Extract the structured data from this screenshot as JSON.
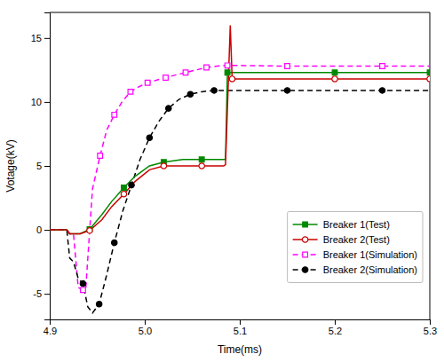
{
  "chart_data": {
    "type": "line",
    "xlabel": "Time(ms)",
    "ylabel": "Votage(kV)",
    "xlim": [
      4.9,
      5.3
    ],
    "ylim": [
      -7,
      17
    ],
    "xticks": [
      4.9,
      {
        "value": 5.0,
        "label": "5.0"
      },
      5.1,
      5.2,
      5.3
    ],
    "yticks": [
      -5,
      0,
      5,
      10,
      15
    ],
    "grid": false,
    "legend": "lower right",
    "series": [
      {
        "name": "Breaker 1(Test)",
        "color": "#008800",
        "line_style": "solid",
        "marker": "square",
        "x": [
          4.9,
          4.918,
          4.921,
          4.925,
          4.932,
          4.942,
          4.955,
          4.965,
          4.978,
          4.99,
          5.005,
          5.02,
          5.04,
          5.06,
          5.085,
          5.087,
          5.12,
          5.16,
          5.2,
          5.25,
          5.3
        ],
        "values": [
          0.0,
          0.0,
          -0.3,
          -0.3,
          -0.3,
          0.05,
          1.2,
          2.2,
          3.3,
          4.2,
          5.0,
          5.3,
          5.5,
          5.5,
          5.5,
          12.3,
          12.3,
          12.3,
          12.3,
          12.3,
          12.3
        ],
        "marker_x": [
          4.942,
          4.978,
          5.02,
          5.06,
          5.087,
          5.2,
          5.3
        ],
        "marker_values": [
          0.05,
          3.3,
          5.3,
          5.5,
          12.3,
          12.3,
          12.3
        ]
      },
      {
        "name": "Breaker 2(Test)",
        "color": "#cc0000",
        "line_style": "solid",
        "marker": "circle-open",
        "x": [
          4.9,
          4.918,
          4.921,
          4.925,
          4.932,
          4.942,
          4.955,
          4.965,
          4.978,
          4.99,
          5.005,
          5.02,
          5.04,
          5.06,
          5.083,
          5.085,
          5.09,
          5.092,
          5.12,
          5.16,
          5.2,
          5.25,
          5.3
        ],
        "values": [
          0.0,
          0.0,
          -0.3,
          -0.3,
          -0.3,
          -0.05,
          0.8,
          1.8,
          2.8,
          3.8,
          4.7,
          5.0,
          5.0,
          5.0,
          5.0,
          5.1,
          16.0,
          11.8,
          11.8,
          11.8,
          11.8,
          11.8,
          11.8
        ],
        "marker_x": [
          4.942,
          4.978,
          5.02,
          5.06,
          5.092,
          5.2,
          5.3
        ],
        "marker_values": [
          -0.05,
          2.8,
          5.0,
          5.0,
          11.8,
          11.8,
          11.8
        ]
      },
      {
        "name": "Breaker 1(Simulation)",
        "color": "#ff00ff",
        "line_style": "dashed",
        "marker": "square-open",
        "x": [
          4.9,
          4.918,
          4.921,
          4.925,
          4.93,
          4.935,
          4.938,
          4.945,
          4.953,
          4.96,
          4.968,
          4.976,
          4.985,
          4.994,
          5.003,
          5.012,
          5.022,
          5.032,
          5.043,
          5.054,
          5.065,
          5.076,
          5.087,
          5.1,
          5.15,
          5.2,
          5.25,
          5.3
        ],
        "values": [
          0.0,
          0.0,
          -0.3,
          -0.3,
          -4.5,
          -4.7,
          -4.5,
          3.2,
          5.8,
          7.8,
          9.0,
          10.0,
          10.8,
          11.2,
          11.5,
          11.7,
          11.9,
          12.1,
          12.3,
          12.5,
          12.7,
          12.8,
          12.85,
          12.85,
          12.8,
          12.8,
          12.8,
          12.8
        ],
        "marker_x": [
          4.935,
          4.953,
          4.968,
          4.985,
          5.003,
          5.022,
          5.043,
          5.065,
          5.087,
          5.15,
          5.25
        ],
        "marker_values": [
          -4.7,
          5.8,
          9.0,
          10.8,
          11.5,
          11.9,
          12.3,
          12.7,
          12.85,
          12.8,
          12.8
        ]
      },
      {
        "name": "Breaker 2(Simulation)",
        "color": "#000000",
        "line_style": "dashed",
        "marker": "circle",
        "x": [
          4.9,
          4.918,
          4.921,
          4.925,
          4.93,
          4.935,
          4.94,
          4.945,
          4.952,
          4.96,
          4.968,
          4.977,
          4.986,
          4.995,
          5.005,
          5.015,
          5.025,
          5.036,
          5.048,
          5.06,
          5.073,
          5.087,
          5.1,
          5.15,
          5.2,
          5.25,
          5.3
        ],
        "values": [
          0.0,
          0.0,
          -2.2,
          -2.5,
          -3.8,
          -4.2,
          -6.0,
          -6.5,
          -5.8,
          -3.5,
          -1.0,
          1.5,
          3.5,
          5.5,
          7.2,
          8.5,
          9.5,
          10.2,
          10.6,
          10.8,
          10.9,
          10.9,
          10.9,
          10.9,
          10.9,
          10.9,
          10.9
        ],
        "marker_x": [
          4.935,
          4.952,
          4.968,
          4.986,
          5.005,
          5.025,
          5.048,
          5.073,
          5.15,
          5.25
        ],
        "marker_values": [
          -4.2,
          -5.8,
          -1.0,
          3.5,
          7.2,
          9.5,
          10.6,
          10.9,
          10.9,
          10.9
        ]
      }
    ]
  }
}
